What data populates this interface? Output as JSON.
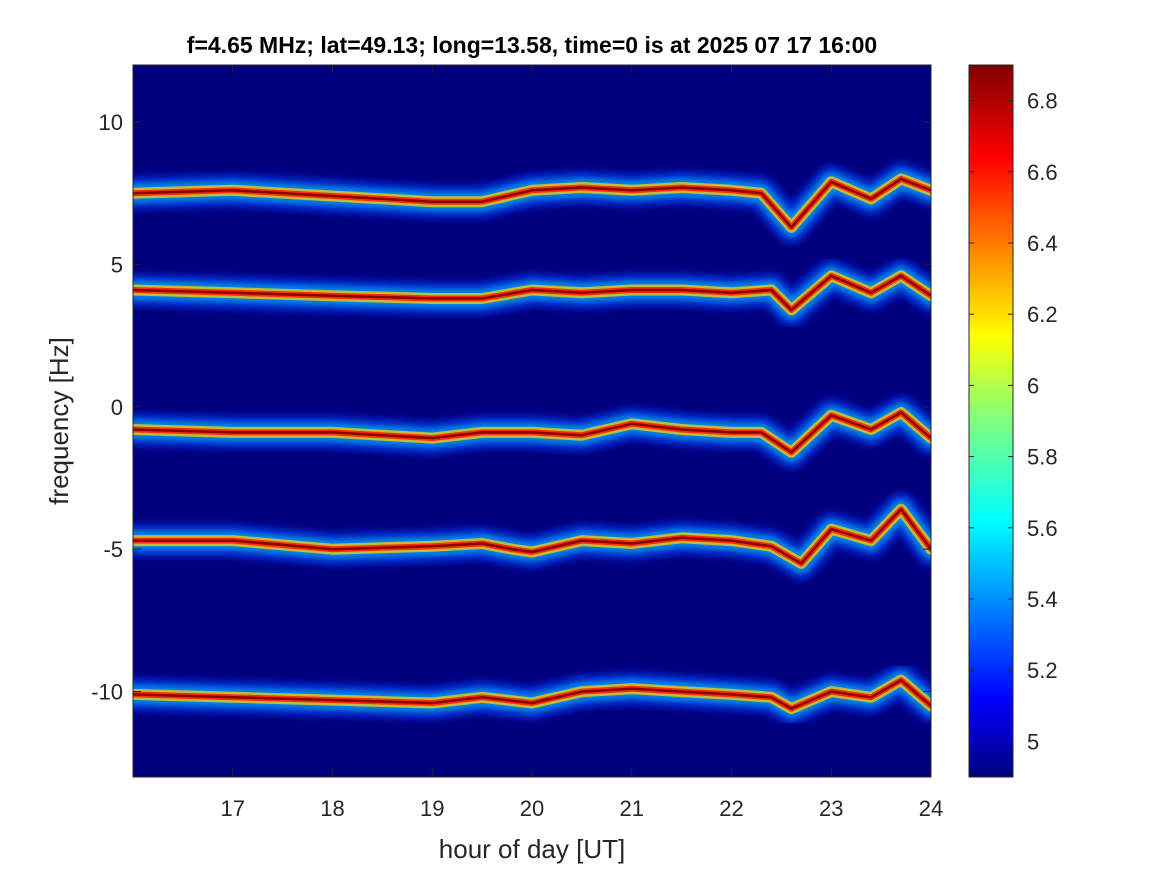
{
  "chart_data": {
    "type": "heatmap",
    "title": "f=4.65 MHz;  lat=49.13; long=13.58, time=0 is at 2025 07 17 16:00",
    "xlabel": "hour of day [UT]",
    "ylabel": "frequency [Hz]",
    "xlim": [
      16.0,
      24.0
    ],
    "ylim": [
      -13.0,
      12.0
    ],
    "xticks": [
      17,
      18,
      19,
      20,
      21,
      22,
      23,
      24
    ],
    "xtick_labels": [
      "17",
      "18",
      "19",
      "20",
      "21",
      "22",
      "23",
      "24"
    ],
    "yticks": [
      10,
      5,
      0,
      -5,
      -10
    ],
    "ytick_labels": [
      "10",
      "5",
      "0",
      "-5",
      "-10"
    ],
    "colorbar": {
      "range": [
        4.9,
        6.9
      ],
      "ticks": [
        5.0,
        5.2,
        5.4,
        5.6,
        5.8,
        6.0,
        6.2,
        6.4,
        6.6,
        6.8
      ],
      "tick_labels": [
        "5",
        "5.2",
        "5.4",
        "5.6",
        "5.8",
        "6",
        "6.2",
        "6.4",
        "6.6",
        "6.8"
      ],
      "colormap": "jet"
    },
    "background_color": "#00007f",
    "traces": [
      {
        "name": "trace-1",
        "center": [
          [
            16.0,
            7.5
          ],
          [
            17.0,
            7.6
          ],
          [
            18.0,
            7.4
          ],
          [
            19.0,
            7.2
          ],
          [
            19.5,
            7.2
          ],
          [
            20.0,
            7.6
          ],
          [
            20.5,
            7.7
          ],
          [
            21.0,
            7.6
          ],
          [
            21.5,
            7.7
          ],
          [
            22.0,
            7.6
          ],
          [
            22.3,
            7.5
          ],
          [
            22.6,
            6.3
          ],
          [
            23.0,
            7.9
          ],
          [
            23.4,
            7.3
          ],
          [
            23.7,
            8.0
          ],
          [
            24.0,
            7.6
          ]
        ]
      },
      {
        "name": "trace-2",
        "center": [
          [
            16.0,
            4.1
          ],
          [
            17.0,
            4.0
          ],
          [
            18.0,
            3.9
          ],
          [
            19.0,
            3.8
          ],
          [
            19.5,
            3.8
          ],
          [
            20.0,
            4.1
          ],
          [
            20.5,
            4.0
          ],
          [
            21.0,
            4.1
          ],
          [
            21.5,
            4.1
          ],
          [
            22.0,
            4.0
          ],
          [
            22.4,
            4.1
          ],
          [
            22.6,
            3.4
          ],
          [
            23.0,
            4.6
          ],
          [
            23.4,
            4.0
          ],
          [
            23.7,
            4.6
          ],
          [
            24.0,
            3.9
          ]
        ]
      },
      {
        "name": "trace-3",
        "center": [
          [
            16.0,
            -0.8
          ],
          [
            17.0,
            -0.9
          ],
          [
            18.0,
            -0.9
          ],
          [
            19.0,
            -1.1
          ],
          [
            19.5,
            -0.9
          ],
          [
            20.0,
            -0.9
          ],
          [
            20.5,
            -1.0
          ],
          [
            21.0,
            -0.6
          ],
          [
            21.5,
            -0.8
          ],
          [
            22.0,
            -0.9
          ],
          [
            22.3,
            -0.9
          ],
          [
            22.6,
            -1.6
          ],
          [
            23.0,
            -0.3
          ],
          [
            23.4,
            -0.8
          ],
          [
            23.7,
            -0.2
          ],
          [
            24.0,
            -1.1
          ]
        ]
      },
      {
        "name": "trace-4",
        "center": [
          [
            16.0,
            -4.7
          ],
          [
            17.0,
            -4.7
          ],
          [
            18.0,
            -5.0
          ],
          [
            19.0,
            -4.9
          ],
          [
            19.5,
            -4.8
          ],
          [
            19.8,
            -5.0
          ],
          [
            20.0,
            -5.1
          ],
          [
            20.5,
            -4.7
          ],
          [
            21.0,
            -4.8
          ],
          [
            21.5,
            -4.6
          ],
          [
            22.0,
            -4.7
          ],
          [
            22.4,
            -4.9
          ],
          [
            22.7,
            -5.5
          ],
          [
            23.0,
            -4.3
          ],
          [
            23.4,
            -4.7
          ],
          [
            23.7,
            -3.6
          ],
          [
            24.0,
            -5.0
          ]
        ]
      },
      {
        "name": "trace-5",
        "center": [
          [
            16.0,
            -10.1
          ],
          [
            17.0,
            -10.2
          ],
          [
            18.0,
            -10.3
          ],
          [
            19.0,
            -10.4
          ],
          [
            19.5,
            -10.2
          ],
          [
            20.0,
            -10.4
          ],
          [
            20.5,
            -10.0
          ],
          [
            21.0,
            -9.9
          ],
          [
            21.5,
            -10.0
          ],
          [
            22.0,
            -10.1
          ],
          [
            22.4,
            -10.2
          ],
          [
            22.6,
            -10.6
          ],
          [
            23.0,
            -10.0
          ],
          [
            23.4,
            -10.2
          ],
          [
            23.7,
            -9.6
          ],
          [
            24.0,
            -10.5
          ]
        ]
      }
    ]
  }
}
